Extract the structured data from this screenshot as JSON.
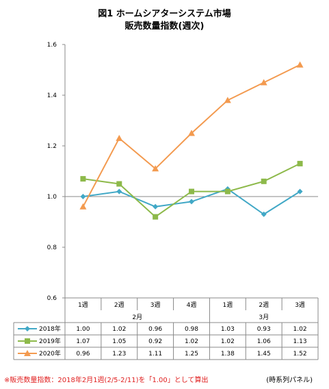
{
  "title_line1": "図1 ホームシアターシステム市場",
  "title_line2": "販売数量指数(週次)",
  "note": "※販売数量指数：2018年2月1週(2/5-2/11)を「1.00」として算出",
  "source": "(時系列パネル)",
  "colors": {
    "s2018": "#41a8c6",
    "s2019": "#8db94a",
    "s2020": "#f39a4f"
  },
  "chart_data": {
    "type": "line",
    "categories": [
      "1週",
      "2週",
      "3週",
      "4週",
      "1週",
      "2週",
      "3週"
    ],
    "groups": [
      {
        "label": "2月",
        "span": 4
      },
      {
        "label": "3月",
        "span": 3
      }
    ],
    "ylim": [
      0.6,
      1.6
    ],
    "yticks": [
      "0.6",
      "0.8",
      "1.0",
      "1.2",
      "1.4",
      "1.6"
    ],
    "reference_line": 1.0,
    "series": [
      {
        "name": "2018年",
        "marker": "diamond",
        "values": [
          1.0,
          1.02,
          0.96,
          0.98,
          1.03,
          0.93,
          1.02
        ]
      },
      {
        "name": "2019年",
        "marker": "square",
        "values": [
          1.07,
          1.05,
          0.92,
          1.02,
          1.02,
          1.06,
          1.13
        ]
      },
      {
        "name": "2020年",
        "marker": "triangle",
        "values": [
          0.96,
          1.23,
          1.11,
          1.25,
          1.38,
          1.45,
          1.52
        ]
      }
    ],
    "table": [
      [
        "1.00",
        "1.02",
        "0.96",
        "0.98",
        "1.03",
        "0.93",
        "1.02"
      ],
      [
        "1.07",
        "1.05",
        "0.92",
        "1.02",
        "1.02",
        "1.06",
        "1.13"
      ],
      [
        "0.96",
        "1.23",
        "1.11",
        "1.25",
        "1.38",
        "1.45",
        "1.52"
      ]
    ]
  }
}
